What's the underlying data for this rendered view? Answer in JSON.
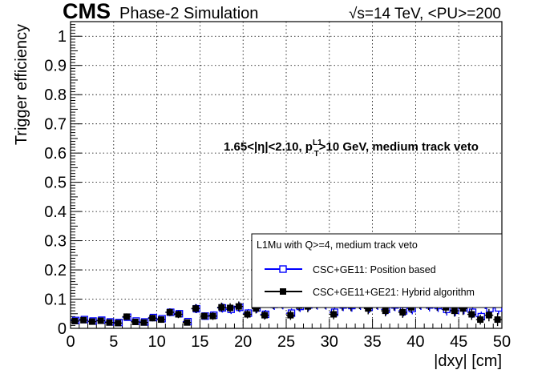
{
  "header": {
    "experiment": "CMS",
    "subtitle": "Phase-2 Simulation",
    "energy": "√s=14 TeV, <PU>=200"
  },
  "annotation": {
    "prefix": "1.65<|η|<2.10, p",
    "sup": "L1",
    "sub": "T",
    "suffix": ">10 GeV, medium track veto"
  },
  "legend": {
    "header": "L1Mu with Q>=4, medium track veto",
    "entries": [
      {
        "label": "CSC+GE11: Position based",
        "color": "#0000ff",
        "marker": "open-square"
      },
      {
        "label": "CSC+GE11+GE21: Hybrid algorithm",
        "color": "#000000",
        "marker": "filled-square"
      }
    ]
  },
  "chart_data": {
    "type": "scatter",
    "xlabel": "|dxy| [cm]",
    "ylabel": "Trigger efficiency",
    "xlim": [
      0,
      50
    ],
    "ylim": [
      0,
      1.05
    ],
    "xticks": [
      0,
      5,
      10,
      15,
      20,
      25,
      30,
      35,
      40,
      45,
      50
    ],
    "yticks": [
      0,
      0.1,
      0.2,
      0.3,
      0.4,
      0.5,
      0.6,
      0.7,
      0.8,
      0.9,
      1
    ],
    "ytick_labels": [
      "0",
      "0.1",
      "0.2",
      "0.3",
      "0.4",
      "0.5",
      "0.6",
      "0.7",
      "0.8",
      "0.9",
      "1"
    ],
    "grid": true,
    "legend_position": "bottom-right",
    "x": [
      0.5,
      1.5,
      2.5,
      3.5,
      4.5,
      5.5,
      6.5,
      7.5,
      8.5,
      9.5,
      10.5,
      11.5,
      12.5,
      13.5,
      14.5,
      15.5,
      16.5,
      17.5,
      18.5,
      19.5,
      20.5,
      21.5,
      22.5,
      23.5,
      24.5,
      25.5,
      26.5,
      27.5,
      28.5,
      29.5,
      30.5,
      31.5,
      32.5,
      33.5,
      34.5,
      35.5,
      36.5,
      37.5,
      38.5,
      39.5,
      40.5,
      41.5,
      42.5,
      43.5,
      44.5,
      45.5,
      46.5,
      47.5,
      48.5,
      49.5
    ],
    "x_errors": 0.5,
    "series": [
      {
        "name": "CSC+GE11: Position based",
        "color": "#0000ff",
        "marker": "open-square",
        "values": [
          0.027,
          0.03,
          0.025,
          0.028,
          0.022,
          0.02,
          0.038,
          0.025,
          0.022,
          0.037,
          0.033,
          0.055,
          0.05,
          0.023,
          0.067,
          0.042,
          0.045,
          0.07,
          0.065,
          0.072,
          0.052,
          0.07,
          0.048,
          0.082,
          0.085,
          0.052,
          0.075,
          0.08,
          0.085,
          0.085,
          0.055,
          0.08,
          0.078,
          0.085,
          0.072,
          0.085,
          0.065,
          0.08,
          0.06,
          0.068,
          0.085,
          0.08,
          0.078,
          0.065,
          0.062,
          0.07,
          0.055,
          0.04,
          0.068,
          0.07
        ],
        "errors": [
          0.009,
          0.009,
          0.009,
          0.009,
          0.008,
          0.008,
          0.011,
          0.009,
          0.009,
          0.011,
          0.011,
          0.013,
          0.013,
          0.009,
          0.015,
          0.012,
          0.013,
          0.016,
          0.016,
          0.017,
          0.014,
          0.017,
          0.015,
          0.019,
          0.02,
          0.016,
          0.019,
          0.02,
          0.021,
          0.021,
          0.017,
          0.021,
          0.021,
          0.022,
          0.02,
          0.022,
          0.019,
          0.021,
          0.019,
          0.02,
          0.022,
          0.022,
          0.022,
          0.021,
          0.02,
          0.022,
          0.019,
          0.017,
          0.021,
          0.022
        ]
      },
      {
        "name": "CSC+GE11+GE21: Hybrid algorithm",
        "color": "#000000",
        "marker": "filled-square",
        "values": [
          0.025,
          0.028,
          0.023,
          0.026,
          0.02,
          0.018,
          0.04,
          0.022,
          0.02,
          0.035,
          0.03,
          0.055,
          0.048,
          0.02,
          0.068,
          0.042,
          0.042,
          0.072,
          0.07,
          0.075,
          0.048,
          0.068,
          0.045,
          0.085,
          0.088,
          0.045,
          0.078,
          0.075,
          0.088,
          0.088,
          0.048,
          0.082,
          0.08,
          0.088,
          0.068,
          0.088,
          0.06,
          0.082,
          0.055,
          0.072,
          0.088,
          0.085,
          0.082,
          0.072,
          0.06,
          0.068,
          0.048,
          0.03,
          0.045,
          0.03
        ]
      }
    ]
  }
}
